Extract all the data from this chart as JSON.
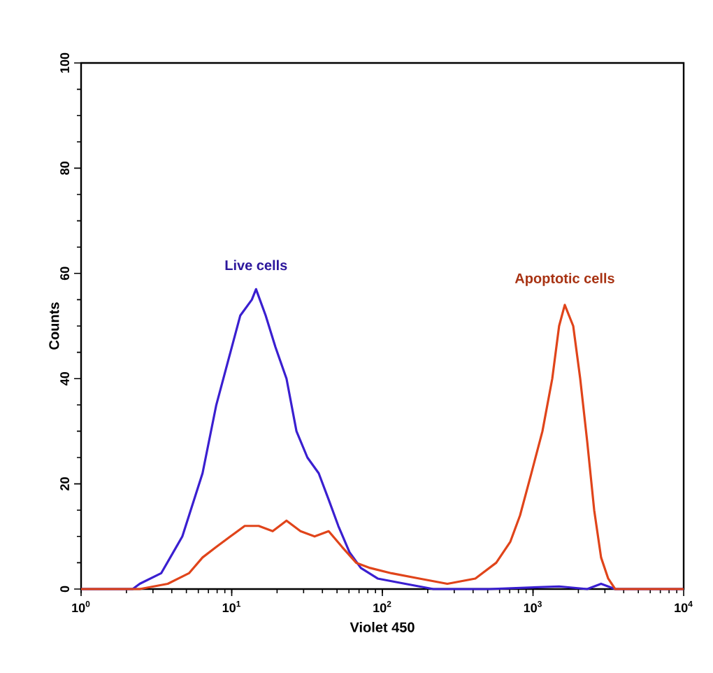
{
  "chart_data": {
    "type": "line",
    "xlabel": "Violet 450",
    "ylabel": "Counts",
    "log": "x",
    "xlim": [
      1,
      10000
    ],
    "ylim": [
      0,
      100
    ],
    "xticks": [
      {
        "value": 1,
        "label": "10$^{0}$"
      },
      {
        "value": 10,
        "label": "10$^{1}$"
      },
      {
        "value": 100,
        "label": "10$^{2}$"
      },
      {
        "value": 1000,
        "label": "10$^{3}$"
      },
      {
        "value": 10000,
        "label": "10$^{4}$"
      }
    ],
    "yticks": [
      0,
      20,
      40,
      60,
      80,
      100
    ],
    "series": [
      {
        "name": "Live cells",
        "color": "#3a1fd0",
        "x": [
          1,
          2.2,
          2.45,
          3.4,
          4.7,
          6.4,
          7.9,
          9.8,
          11.4,
          13.6,
          14.5,
          16.8,
          19.5,
          23.1,
          26.9,
          31.8,
          37.8,
          44,
          51,
          60.5,
          72,
          93,
          142,
          218,
          513,
          1490,
          2290,
          2830,
          3510,
          4350,
          10000
        ],
        "values": [
          0,
          0,
          1,
          3,
          10,
          22,
          35,
          45,
          52,
          55,
          57,
          52,
          46,
          40,
          30,
          25,
          22,
          17,
          12,
          7,
          4,
          2,
          1,
          0,
          0,
          0.5,
          0,
          1,
          0,
          0,
          0
        ]
      },
      {
        "name": "Apoptotic cells",
        "color": "#e0441a",
        "x": [
          1,
          2.45,
          3.76,
          5.2,
          6.4,
          7.9,
          9.8,
          12.2,
          15.1,
          18.7,
          23.1,
          28.6,
          35.5,
          44,
          54,
          67,
          83,
          115,
          176,
          270,
          414,
          570,
          707,
          820,
          975,
          1155,
          1342,
          1490,
          1625,
          1849,
          2057,
          2290,
          2547,
          2830,
          3155,
          3510,
          10000
        ],
        "values": [
          0,
          0,
          1,
          3,
          6,
          8,
          10,
          12,
          12,
          11,
          13,
          11,
          10,
          11,
          8,
          5,
          4,
          3,
          2,
          1,
          2,
          5,
          9,
          14,
          22,
          30,
          40,
          50,
          54,
          50,
          40,
          28,
          15,
          6,
          2,
          0,
          0
        ]
      }
    ]
  }
}
